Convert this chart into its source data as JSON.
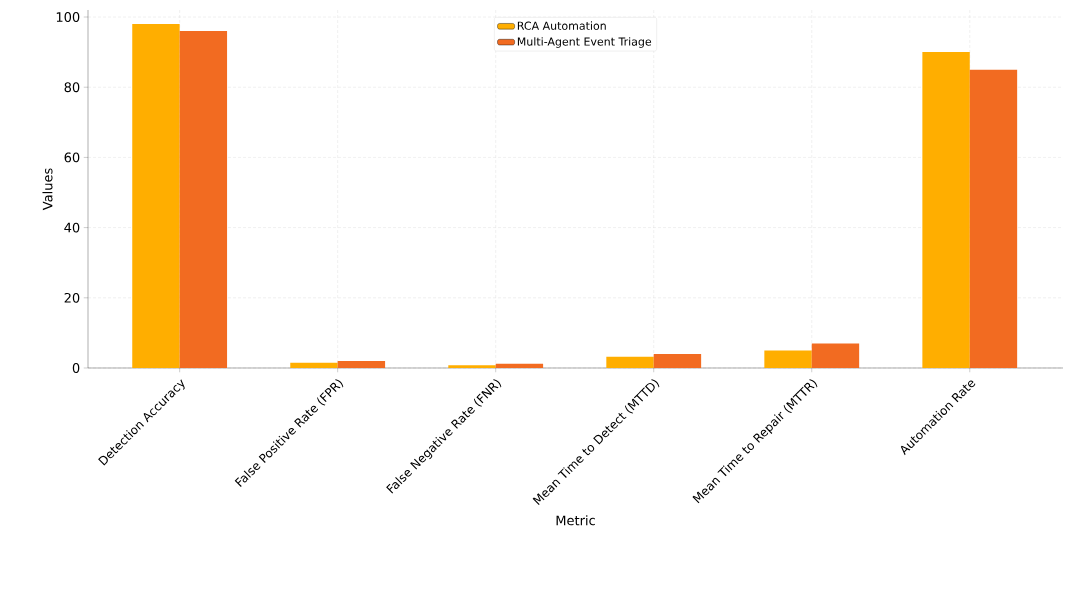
{
  "chart_data": {
    "type": "bar",
    "xlabel": "Metric",
    "ylabel": "Values",
    "categories": [
      "Detection Accuracy",
      "False Positive Rate (FPR)",
      "False Negative Rate (FNR)",
      "Mean Time to Detect (MTTD)",
      "Mean Time to Repair (MTTR)",
      "Automation Rate"
    ],
    "series": [
      {
        "name": "RCA Automation",
        "color": "#ffae00",
        "values": [
          98,
          1.5,
          0.8,
          3.2,
          5,
          90
        ]
      },
      {
        "name": "Multi-Agent Event Triage",
        "color": "#f26b21",
        "values": [
          96,
          2,
          1.2,
          4,
          7,
          85
        ]
      }
    ],
    "ylim": [
      0,
      102
    ],
    "yticks": [
      0,
      20,
      40,
      60,
      80,
      100
    ],
    "grid": true,
    "legend": "top"
  }
}
